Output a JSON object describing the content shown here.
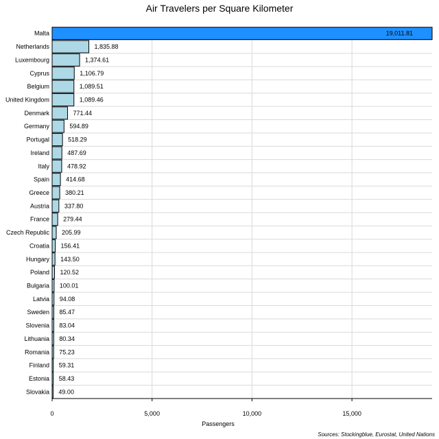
{
  "chart_data": {
    "type": "bar",
    "orientation": "horizontal",
    "title": "Air Travelers per Square Kilometer",
    "xlabel": "Passengers",
    "ylabel": "",
    "xlim": [
      0,
      19011.81
    ],
    "xticks": [
      0,
      5000,
      10000,
      15000
    ],
    "xtick_labels": [
      "0",
      "5,000",
      "10,000",
      "15,000"
    ],
    "grid": "vertical",
    "categories": [
      "Malta",
      "Netherlands",
      "Luxembourg",
      "Cyprus",
      "Belgium",
      "United Kingdom",
      "Denmark",
      "Germany",
      "Portugal",
      "Ireland",
      "Italy",
      "Spain",
      "Greece",
      "Austria",
      "France",
      "Czech Republic",
      "Croatia",
      "Hungary",
      "Poland",
      "Bulgaria",
      "Latvia",
      "Sweden",
      "Slovenia",
      "Lithuania",
      "Romania",
      "Finland",
      "Estonia",
      "Slovakia"
    ],
    "values": [
      19011.81,
      1835.88,
      1374.61,
      1106.79,
      1089.51,
      1089.46,
      771.44,
      594.89,
      518.29,
      487.69,
      478.92,
      414.68,
      380.21,
      337.8,
      279.44,
      205.99,
      156.41,
      143.5,
      120.52,
      100.01,
      94.08,
      85.47,
      83.04,
      80.34,
      75.23,
      59.31,
      58.43,
      49.0
    ],
    "value_labels": [
      "19,011.81",
      "1,835.88",
      "1,374.61",
      "1,106.79",
      "1,089.51",
      "1,089.46",
      "771.44",
      "594.89",
      "518.29",
      "487.69",
      "478.92",
      "414.68",
      "380.21",
      "337.80",
      "279.44",
      "205.99",
      "156.41",
      "143.50",
      "120.52",
      "100.01",
      "94.08",
      "85.47",
      "83.04",
      "80.34",
      "75.23",
      "59.31",
      "58.43",
      "49.00"
    ],
    "highlight_category": "Malta",
    "colors": {
      "bar": "#add8e6",
      "highlight": "#1e90ff",
      "grid": "#d9d9d9",
      "axis": "#000000"
    },
    "source": "Sources: Stockingblue, Eurostat, United Nations"
  }
}
